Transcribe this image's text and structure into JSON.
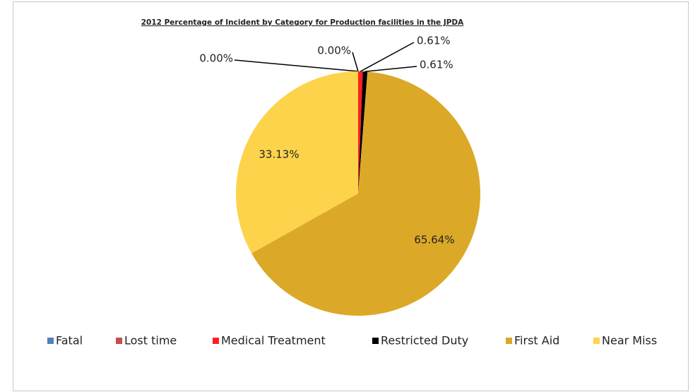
{
  "chart_data": {
    "type": "pie",
    "title": "2012 Percentage of Incident by Category for Production facilities in the JPDA",
    "categories": [
      "Fatal",
      "Lost time",
      "Medical Treatment",
      "Restricted Duty",
      "First Aid",
      "Near Miss"
    ],
    "values": [
      0,
      0,
      0.61,
      0.61,
      65.64,
      33.13
    ],
    "value_labels": [
      "0.00%",
      "0.00%",
      "0.61%",
      "0.61%",
      "65.64%",
      "33.13%"
    ],
    "colors": [
      "#4f81bd",
      "#c0504d",
      "#ff2121",
      "#000000",
      "#dba927",
      "#fdd34b"
    ],
    "legend": "bottom"
  }
}
